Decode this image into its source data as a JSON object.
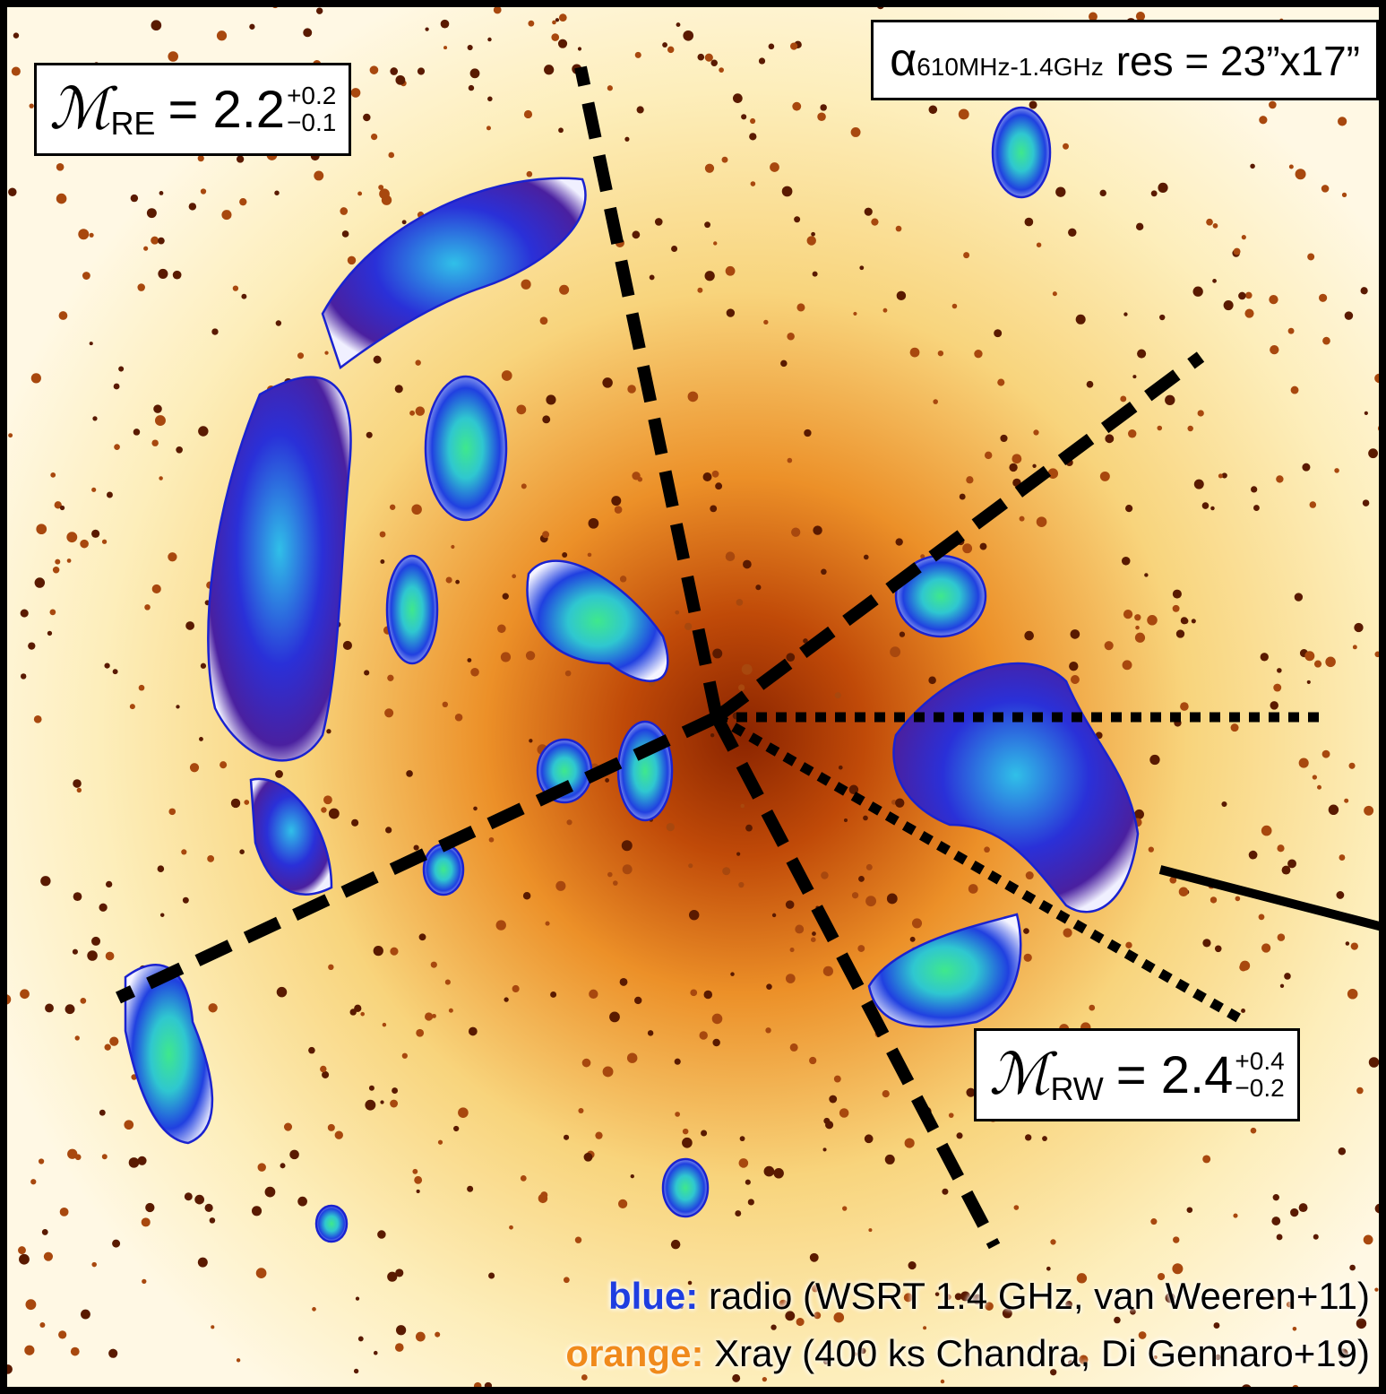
{
  "labels": {
    "mach_east": {
      "symbol": "ℳ",
      "subscript": "RE",
      "equals": "= 2.2",
      "upper": "+0.2",
      "lower": "−0.1"
    },
    "resolution": {
      "symbol": "α",
      "subscript": "610MHz-1.4GHz",
      "text": "res = 23”x17”"
    },
    "mach_west": {
      "symbol": "ℳ",
      "subscript": "RW",
      "equals": "= 2.4",
      "upper": "+0.4",
      "lower": "−0.2"
    }
  },
  "legend": [
    {
      "key": "blue:",
      "text": "radio (WSRT 1.4 GHz, van Weeren+11)"
    },
    {
      "key": "orange:",
      "text": "Xray (400 ks Chandra, Di Gennaro+19)"
    }
  ]
}
